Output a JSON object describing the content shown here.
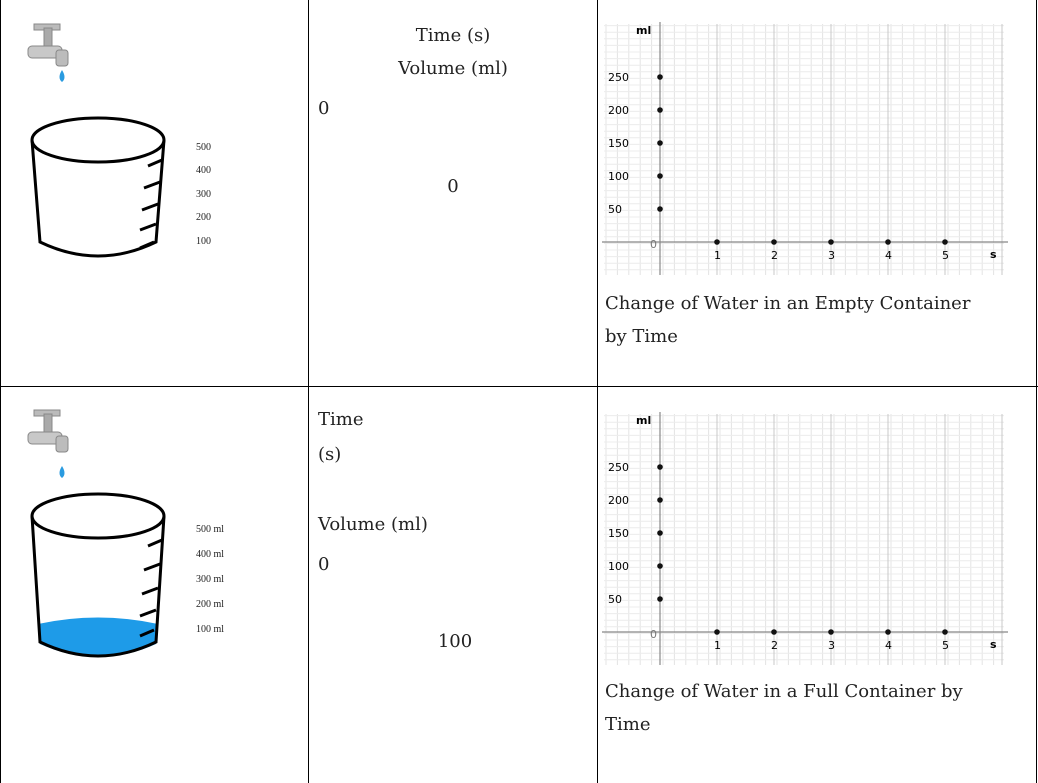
{
  "rows": [
    {
      "scale_labels": [
        "500",
        "400",
        "300",
        "200",
        "100"
      ],
      "time_label": "Time (s)",
      "volume_label": "Volume (ml)",
      "time_value": "0",
      "volume_value": "0",
      "graph": {
        "y_unit": "ml",
        "x_unit": "s",
        "origin": "0",
        "y_ticks": [
          "250",
          "200",
          "150",
          "100",
          "50"
        ],
        "x_ticks": [
          "1",
          "2",
          "3",
          "4",
          "5"
        ],
        "caption_line1": "Change of Water in an Empty Container",
        "caption_line2": "by Time"
      }
    },
    {
      "scale_labels": [
        "500 ml",
        "400 ml",
        "300 ml",
        "200 ml",
        "100 ml"
      ],
      "time_label_line1": "Time",
      "time_label_line2": "(s)",
      "volume_label": "Volume (ml)",
      "time_value": "0",
      "volume_value": "100",
      "graph": {
        "y_unit": "ml",
        "x_unit": "s",
        "origin": "0",
        "y_ticks": [
          "250",
          "200",
          "150",
          "100",
          "50"
        ],
        "x_ticks": [
          "1",
          "2",
          "3",
          "4",
          "5"
        ],
        "caption_line1": "Change of Water in a Full Container by",
        "caption_line2": "Time"
      }
    }
  ]
}
